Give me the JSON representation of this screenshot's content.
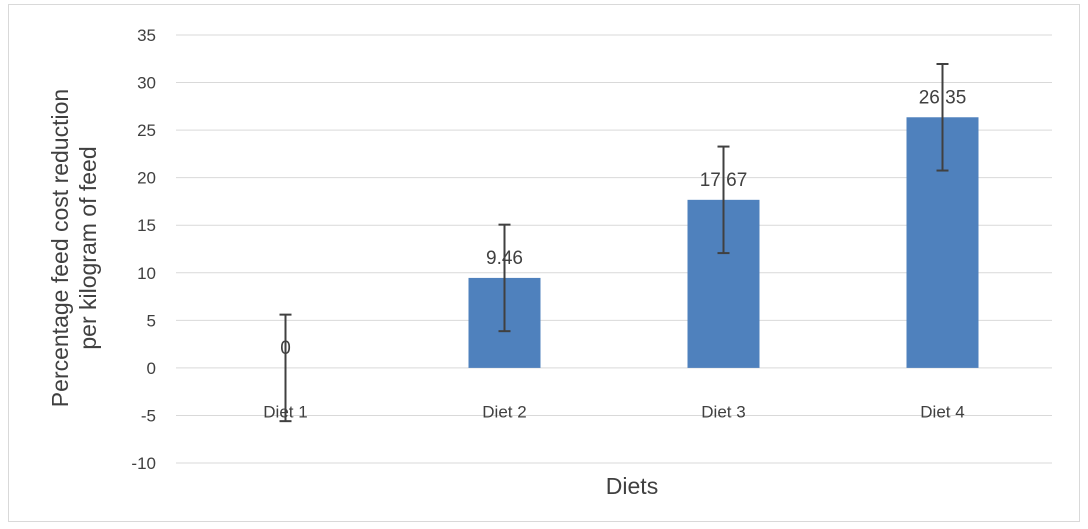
{
  "chart_data": {
    "type": "bar",
    "categories": [
      "Diet 1",
      "Diet 2",
      "Diet 3",
      "Diet 4"
    ],
    "values": [
      0,
      9.46,
      17.67,
      26.35
    ],
    "data_labels": [
      "0",
      "9.46",
      "17.67",
      "26.35"
    ],
    "error_bars": [
      5.6,
      5.6,
      5.6,
      5.6
    ],
    "title": "",
    "xlabel": "Diets",
    "ylabel_lines": [
      "Percentage feed cost reduction",
      "per kilogram of feed"
    ],
    "ylim": [
      -10,
      35
    ],
    "yticks": [
      35,
      30,
      25,
      20,
      15,
      10,
      5,
      0,
      -5,
      -10
    ],
    "ytick_labels": [
      "35",
      "30",
      "25",
      "20",
      "15",
      "10",
      "5",
      "0",
      "-5",
      "-10"
    ],
    "grid": true,
    "legend": "none",
    "colors": {
      "bar": "#4f81bd",
      "error_bar": "#404040",
      "grid": "#d9d9d9",
      "text": "#404040"
    }
  }
}
